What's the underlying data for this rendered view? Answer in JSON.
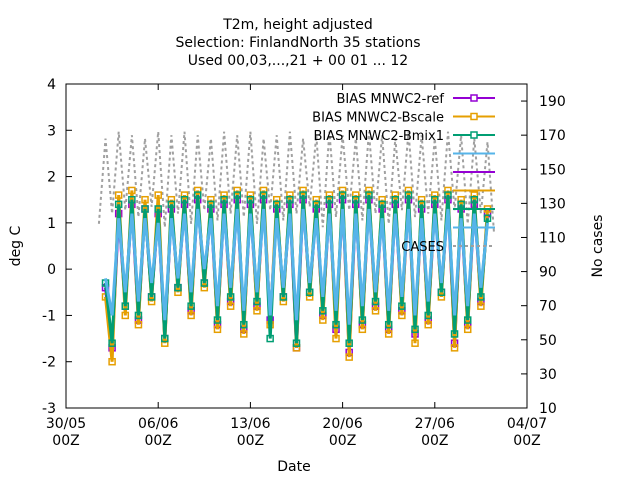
{
  "chart_data": {
    "type": "line",
    "title_lines": [
      "T2m, height adjusted",
      "Selection: FinlandNorth     35 stations",
      "Used 00,03,...,21 + 00 01 ... 12"
    ],
    "xlabel": "Date",
    "ylabel": "deg C",
    "y2label": "No cases",
    "x_ticks": [
      {
        "day": 0,
        "line1": "30/05",
        "line2": "00Z"
      },
      {
        "day": 7,
        "line1": "06/06",
        "line2": "00Z"
      },
      {
        "day": 14,
        "line1": "13/06",
        "line2": "00Z"
      },
      {
        "day": 21,
        "line1": "20/06",
        "line2": "00Z"
      },
      {
        "day": 28,
        "line1": "27/06",
        "line2": "00Z"
      },
      {
        "day": 35,
        "line1": "04/07",
        "line2": "00Z"
      }
    ],
    "xlim_days": [
      0,
      35
    ],
    "ylim": [
      -3,
      4
    ],
    "y_ticks": [
      -3,
      -2,
      -1,
      0,
      1,
      2,
      3,
      4
    ],
    "y2lim": [
      10,
      200
    ],
    "y2_ticks": [
      10,
      30,
      50,
      70,
      90,
      110,
      130,
      150,
      170,
      190
    ],
    "grid": false,
    "legend_position": "top-right",
    "legend": [
      {
        "label": "BIAS MNWC2-ref",
        "color": "#9400d3",
        "marker": "square"
      },
      {
        "label": "BIAS MNWC2-Bscale",
        "color": "#e69f00",
        "marker": "square"
      },
      {
        "label": "BIAS MNWC2-Bmix1",
        "color": "#009e73",
        "marker": "square"
      },
      {
        "label": "",
        "color": "#56b4e9",
        "marker": "none"
      },
      {
        "label": "",
        "color": "#9400d3",
        "marker": "none"
      },
      {
        "label": "",
        "color": "#e69f00",
        "marker": "none"
      },
      {
        "label": "",
        "color": "#009e73",
        "marker": "none"
      },
      {
        "label": "",
        "color": "#56b4e9",
        "marker": "none"
      },
      {
        "label": "CASES",
        "color": "#a0a0a0",
        "marker": "dash"
      }
    ],
    "series": [
      {
        "name": "BIAS MNWC2-ref",
        "color": "#9400d3",
        "axis": "y",
        "x_days": [
          3,
          3.5,
          4,
          4.5,
          5,
          5.5,
          6,
          6.5,
          7,
          7.5,
          8,
          8.5,
          9,
          9.5,
          10,
          10.5,
          11,
          11.5,
          12,
          12.5,
          13,
          13.5,
          14,
          14.5,
          15,
          15.5,
          16,
          16.5,
          17,
          17.5,
          18,
          18.5,
          19,
          19.5,
          20,
          20.5,
          21,
          21.5,
          22,
          22.5,
          23,
          23.5,
          24,
          24.5,
          25,
          25.5,
          26,
          26.5,
          27,
          27.5,
          28,
          28.5,
          29,
          29.5,
          30,
          30.5,
          31,
          31.5,
          32
        ],
        "values": [
          -0.4,
          -1.7,
          1.2,
          -0.8,
          1.4,
          -1.1,
          1.3,
          -0.6,
          1.2,
          -1.5,
          1.3,
          -0.4,
          1.4,
          -0.9,
          1.5,
          -0.3,
          1.3,
          -1.2,
          1.4,
          -0.7,
          1.5,
          -1.3,
          1.4,
          -0.8,
          1.5,
          -1.1,
          1.3,
          -0.6,
          1.4,
          -1.7,
          1.5,
          -0.5,
          1.3,
          -1.0,
          1.4,
          -1.3,
          1.5,
          -1.8,
          1.4,
          -1.2,
          1.5,
          -0.8,
          1.3,
          -1.3,
          1.4,
          -0.9,
          1.5,
          -1.4,
          1.3,
          -1.1,
          1.4,
          -0.5,
          1.5,
          -1.6,
          1.3,
          -1.2,
          1.4,
          -0.7,
          1.2
        ]
      },
      {
        "name": "BIAS MNWC2-Bscale",
        "color": "#e69f00",
        "axis": "y",
        "x_days": [
          3,
          3.5,
          4,
          4.5,
          5,
          5.5,
          6,
          6.5,
          7,
          7.5,
          8,
          8.5,
          9,
          9.5,
          10,
          10.5,
          11,
          11.5,
          12,
          12.5,
          13,
          13.5,
          14,
          14.5,
          15,
          15.5,
          16,
          16.5,
          17,
          17.5,
          18,
          18.5,
          19,
          19.5,
          20,
          20.5,
          21,
          21.5,
          22,
          22.5,
          23,
          23.5,
          24,
          24.5,
          25,
          25.5,
          26,
          26.5,
          27,
          27.5,
          28,
          28.5,
          29,
          29.5,
          30,
          30.5,
          31,
          31.5,
          32
        ],
        "values": [
          -0.6,
          -2.0,
          1.6,
          -1.0,
          1.7,
          -1.2,
          1.5,
          -0.7,
          1.6,
          -1.6,
          1.5,
          -0.5,
          1.6,
          -1.0,
          1.7,
          -0.4,
          1.5,
          -1.3,
          1.6,
          -0.8,
          1.7,
          -1.4,
          1.6,
          -0.9,
          1.7,
          -1.2,
          1.5,
          -0.7,
          1.6,
          -1.7,
          1.7,
          -0.6,
          1.5,
          -1.1,
          1.6,
          -1.5,
          1.7,
          -1.9,
          1.6,
          -1.3,
          1.7,
          -0.9,
          1.5,
          -1.4,
          1.6,
          -1.0,
          1.7,
          -1.6,
          1.5,
          -1.2,
          1.6,
          -0.6,
          1.7,
          -1.7,
          1.5,
          -1.3,
          1.6,
          -0.8,
          1.3
        ]
      },
      {
        "name": "BIAS MNWC2-Bmix1",
        "color": "#009e73",
        "axis": "y",
        "x_days": [
          3,
          3.5,
          4,
          4.5,
          5,
          5.5,
          6,
          6.5,
          7,
          7.5,
          8,
          8.5,
          9,
          9.5,
          10,
          10.5,
          11,
          11.5,
          12,
          12.5,
          13,
          13.5,
          14,
          14.5,
          15,
          15.5,
          16,
          16.5,
          17,
          17.5,
          18,
          18.5,
          19,
          19.5,
          20,
          20.5,
          21,
          21.5,
          22,
          22.5,
          23,
          23.5,
          24,
          24.5,
          25,
          25.5,
          26,
          26.5,
          27,
          27.5,
          28,
          28.5,
          29,
          29.5,
          30,
          30.5,
          31,
          31.5,
          32
        ],
        "values": [
          -0.3,
          -1.6,
          1.4,
          -0.8,
          1.5,
          -1.0,
          1.3,
          -0.6,
          1.3,
          -1.5,
          1.4,
          -0.4,
          1.5,
          -0.8,
          1.6,
          -0.3,
          1.4,
          -1.1,
          1.5,
          -0.6,
          1.6,
          -1.2,
          1.5,
          -0.7,
          1.6,
          -1.5,
          1.4,
          -0.6,
          1.5,
          -1.6,
          1.6,
          -0.5,
          1.4,
          -0.9,
          1.5,
          -1.2,
          1.6,
          -1.6,
          1.5,
          -1.1,
          1.6,
          -0.7,
          1.4,
          -1.2,
          1.5,
          -0.8,
          1.6,
          -1.3,
          1.4,
          -1.0,
          1.5,
          -0.5,
          1.6,
          -1.4,
          1.4,
          -1.1,
          1.5,
          -0.6,
          1.1
        ]
      },
      {
        "name": "",
        "color": "#56b4e9",
        "axis": "y",
        "x_days": [
          3,
          3.5,
          4,
          4.5,
          5,
          5.5,
          6,
          6.5,
          7,
          7.5,
          8,
          8.5,
          9,
          9.5,
          10,
          10.5,
          11,
          11.5,
          12,
          12.5,
          13,
          13.5,
          14,
          14.5,
          15,
          15.5,
          16,
          16.5,
          17,
          17.5,
          18,
          18.5,
          19,
          19.5,
          20,
          20.5,
          21,
          21.5,
          22,
          22.5,
          23,
          23.5,
          24,
          24.5,
          25,
          25.5,
          26,
          26.5,
          27,
          27.5,
          28,
          28.5,
          29,
          29.5,
          30,
          30.5,
          31,
          31.5,
          32
        ],
        "values": [
          -0.2,
          -1.0,
          1.1,
          -0.5,
          1.2,
          -0.7,
          1.1,
          -0.3,
          1.0,
          -1.1,
          1.1,
          -0.2,
          1.2,
          -0.5,
          1.3,
          0.0,
          1.1,
          -0.8,
          1.2,
          -0.4,
          1.3,
          -0.9,
          1.2,
          -0.5,
          1.3,
          -1.0,
          1.1,
          -0.4,
          1.2,
          -1.1,
          1.3,
          -0.3,
          1.1,
          -0.6,
          1.2,
          -0.9,
          1.3,
          -1.2,
          1.2,
          -0.8,
          1.3,
          -0.5,
          1.1,
          -0.9,
          1.2,
          -0.6,
          1.3,
          -1.0,
          1.1,
          -0.7,
          1.2,
          -0.3,
          1.3,
          -1.0,
          1.1,
          -0.8,
          1.2,
          -0.4,
          1.0
        ]
      },
      {
        "name": "CASES",
        "color": "#a0a0a0",
        "axis": "y2",
        "x_days": [
          2.5,
          3,
          3.5,
          4,
          4.5,
          5,
          5.5,
          6,
          6.5,
          7,
          7.5,
          8,
          8.5,
          9,
          9.5,
          10,
          10.5,
          11,
          11.5,
          12,
          12.5,
          13,
          13.5,
          14,
          14.5,
          15,
          15.5,
          16,
          16.5,
          17,
          17.5,
          18,
          18.5,
          19,
          19.5,
          20,
          20.5,
          21,
          21.5,
          22,
          22.5,
          23,
          23.5,
          24,
          24.5,
          25,
          25.5,
          26,
          26.5,
          27,
          27.5,
          28,
          28.5,
          29,
          29.5,
          30,
          30.5,
          31,
          31.5,
          32,
          32.5
        ],
        "values": [
          118,
          168,
          124,
          172,
          126,
          170,
          122,
          168,
          128,
          172,
          116,
          170,
          124,
          172,
          118,
          170,
          126,
          168,
          120,
          172,
          124,
          170,
          122,
          172,
          118,
          168,
          126,
          170,
          120,
          172,
          124,
          168,
          128,
          170,
          116,
          172,
          122,
          170,
          126,
          168,
          120,
          172,
          124,
          170,
          118,
          168,
          126,
          172,
          122,
          170,
          124,
          168,
          120,
          172,
          126,
          170,
          118,
          168,
          124,
          166,
          112
        ]
      }
    ]
  }
}
